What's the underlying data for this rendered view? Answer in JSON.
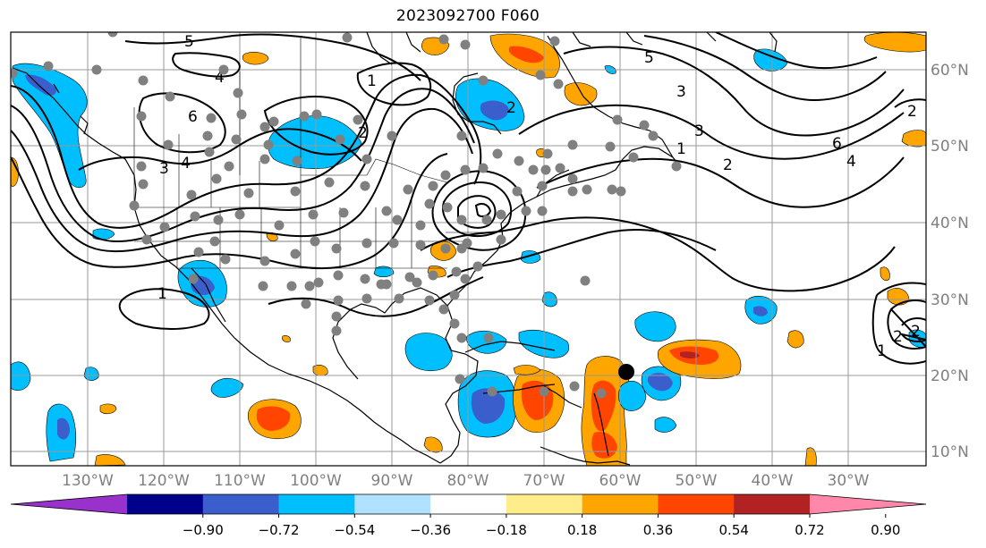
{
  "title": "2023092700 F060",
  "latitude_labels": [
    "60°N",
    "50°N",
    "40°N",
    "30°N",
    "20°N",
    "10°N"
  ],
  "longitude_labels": [
    "130°W",
    "120°W",
    "110°W",
    "100°W",
    "90°W",
    "80°W",
    "70°W",
    "60°W",
    "50°W",
    "40°W",
    "30°W"
  ],
  "colorbar": {
    "tick_labels": [
      "−0.90",
      "−0.72",
      "−0.54",
      "−0.36",
      "−0.18",
      "0.18",
      "0.36",
      "0.54",
      "0.72",
      "0.90"
    ],
    "colors": [
      "#9932cc",
      "#00008b",
      "#3a5fcd",
      "#00bfff",
      "#b0e2ff",
      "#ffffff",
      "#ffec8b",
      "#ffa500",
      "#ff4500",
      "#b22222",
      "#ff88aa"
    ]
  },
  "contour_labels": [
    "5",
    "4",
    "6",
    "3",
    "4",
    "2",
    "1",
    "2",
    "3",
    "1",
    "1",
    "2",
    "3",
    "4",
    "6",
    "5",
    "2",
    "1",
    "2",
    "2"
  ],
  "colors": {
    "coastline": "#000000",
    "gridline": "#999999",
    "station": "#808080",
    "marker": "#000000"
  }
}
